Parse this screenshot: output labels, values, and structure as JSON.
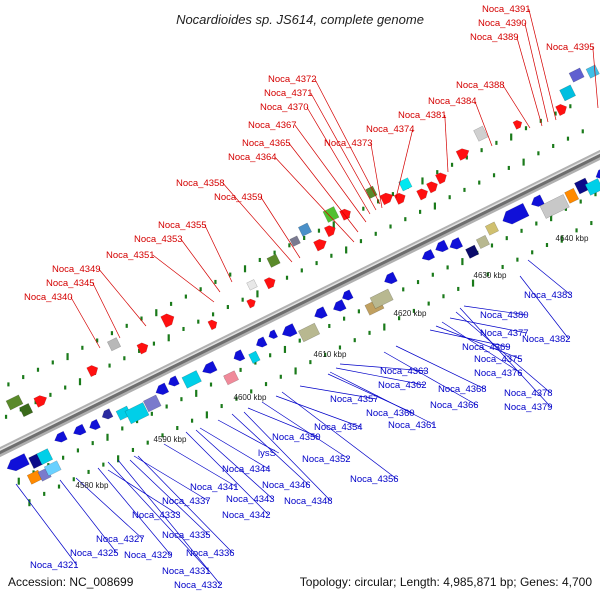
{
  "title": "Nocardioides sp. JS614, complete genome",
  "accession": "Accession: NC_008699",
  "topology": "Topology: circular; Length: 4,985,871 bp; Genes: 4,700",
  "colors": {
    "backbone": "#8c8c8c",
    "forward_label": "#d40000",
    "reverse_label": "#0000c8",
    "tick": "#1a7a1a"
  },
  "ticks": [
    "4580 kbp",
    "4590 kbp",
    "4600 kbp",
    "4610 kbp",
    "4620 kbp",
    "4630 kbp",
    "4640 kbp"
  ],
  "forward_labels": [
    "Noca_4340",
    "Noca_4345",
    "Noca_4349",
    "Noca_4351",
    "Noca_4353",
    "Noca_4355",
    "Noca_4358",
    "Noca_4359",
    "Noca_4364",
    "Noca_4365",
    "Noca_4367",
    "Noca_4370",
    "Noca_4371",
    "Noca_4372",
    "Noca_4373",
    "Noca_4374",
    "Noca_4381",
    "Noca_4384",
    "Noca_4388",
    "Noca_4389",
    "Noca_4390",
    "Noca_4391",
    "Noca_4395"
  ],
  "reverse_labels": [
    "Noca_4321",
    "Noca_4325",
    "Noca_4327",
    "Noca_4329",
    "Noca_4331",
    "Noca_4332",
    "Noca_4333",
    "Noca_4335",
    "Noca_4336",
    "Noca_4337",
    "Noca_4341",
    "Noca_4342",
    "Noca_4343",
    "Noca_4344",
    "lysS",
    "Noca_4346",
    "Noca_4348",
    "Noca_4350",
    "Noca_4352",
    "Noca_4354",
    "Noca_4356",
    "Noca_4357",
    "Noca_4360",
    "Noca_4361",
    "Noca_4362",
    "Noca_4363",
    "Noca_4366",
    "Noca_4368",
    "Noca_4369",
    "Noca_4375",
    "Noca_4376",
    "Noca_4377",
    "Noca_4378",
    "Noca_4379",
    "Noca_4380",
    "Noca_4382",
    "Noca_4383"
  ]
}
